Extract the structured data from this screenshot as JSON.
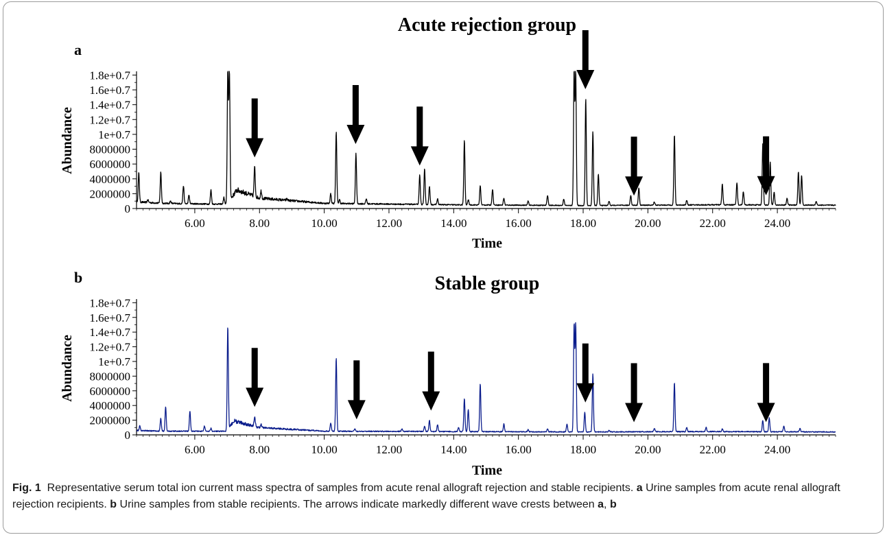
{
  "caption": {
    "fig_label": "Fig. 1",
    "text_1": "Representative serum total ion current mass spectra of samples from acute renal allograft rejection and stable recipients.",
    "label_a": "a",
    "text_2": "Urine samples from acute renal allograft rejection recipients.",
    "label_b": "b",
    "text_3": "Urine samples from stable recipients. The arrows indicate markedly different wave crests between",
    "label_a2": "a",
    "comma": ",",
    "label_b2": "b"
  },
  "colors": {
    "series_a": "#000000",
    "series_b": "#0b1d8c",
    "arrow": "#000000"
  },
  "chart_data": [
    {
      "type": "line",
      "panel_label": "a",
      "title": "Acute rejection group",
      "xlabel": "Time",
      "ylabel": "Abundance",
      "xlim": [
        4.2,
        25.8
      ],
      "ylim": [
        0,
        18500000
      ],
      "x_ticks": [
        6.0,
        8.0,
        10.0,
        12.0,
        14.0,
        16.0,
        18.0,
        20.0,
        22.0,
        24.0
      ],
      "x_tick_labels": [
        "6.00",
        "8.00",
        "10.00",
        "12.00",
        "14.00",
        "16.00",
        "18.00",
        "20.00",
        "22.00",
        "24.00"
      ],
      "y_ticks": [
        0,
        2000000,
        4000000,
        6000000,
        8000000,
        10000000,
        12000000,
        14000000,
        16000000,
        18000000
      ],
      "y_tick_labels": [
        "0",
        "2000000",
        "4000000",
        "6000000",
        "8000000",
        "1e+0.7",
        "1.2e+0.7",
        "1.4e+0.7",
        "1.6e+0.7",
        "1.8e+0.7"
      ],
      "arrows_at": [
        7.85,
        10.97,
        12.95,
        18.07,
        19.57,
        23.65
      ],
      "baseline": [
        [
          4.2,
          900000
        ],
        [
          5.0,
          700000
        ],
        [
          6.5,
          600000
        ],
        [
          7.0,
          600000
        ],
        [
          7.3,
          2500000
        ],
        [
          8.0,
          1400000
        ],
        [
          10.0,
          700000
        ],
        [
          14.0,
          500000
        ],
        [
          18.0,
          400000
        ],
        [
          22.0,
          500000
        ],
        [
          25.8,
          450000
        ]
      ],
      "peaks": [
        [
          4.27,
          4800000
        ],
        [
          4.55,
          1200000
        ],
        [
          4.95,
          4900000
        ],
        [
          5.25,
          1000000
        ],
        [
          5.65,
          3100000
        ],
        [
          5.82,
          1800000
        ],
        [
          6.5,
          2500000
        ],
        [
          6.9,
          1500000
        ],
        [
          7.02,
          18500000
        ],
        [
          7.07,
          18500000
        ],
        [
          7.85,
          5600000
        ],
        [
          8.05,
          2400000
        ],
        [
          8.85,
          1300000
        ],
        [
          9.2,
          1000000
        ],
        [
          9.7,
          900000
        ],
        [
          10.2,
          2000000
        ],
        [
          10.37,
          10400000
        ],
        [
          10.47,
          1200000
        ],
        [
          10.98,
          7400000
        ],
        [
          11.3,
          1300000
        ],
        [
          12.95,
          4500000
        ],
        [
          13.1,
          5300000
        ],
        [
          13.25,
          3000000
        ],
        [
          13.5,
          1300000
        ],
        [
          14.33,
          9200000
        ],
        [
          14.45,
          1200000
        ],
        [
          14.82,
          3100000
        ],
        [
          15.2,
          2600000
        ],
        [
          15.55,
          1400000
        ],
        [
          16.3,
          1000000
        ],
        [
          16.9,
          1800000
        ],
        [
          17.4,
          1300000
        ],
        [
          17.72,
          18500000
        ],
        [
          17.77,
          18500000
        ],
        [
          18.08,
          14800000
        ],
        [
          18.3,
          10400000
        ],
        [
          18.47,
          4600000
        ],
        [
          18.8,
          1000000
        ],
        [
          19.47,
          1800000
        ],
        [
          19.72,
          2800000
        ],
        [
          20.2,
          900000
        ],
        [
          20.82,
          10000000
        ],
        [
          21.2,
          1100000
        ],
        [
          22.3,
          3300000
        ],
        [
          22.75,
          3500000
        ],
        [
          22.95,
          2300000
        ],
        [
          23.55,
          8700000
        ],
        [
          23.78,
          6300000
        ],
        [
          23.9,
          2200000
        ],
        [
          24.3,
          1400000
        ],
        [
          24.65,
          5000000
        ],
        [
          24.75,
          4500000
        ],
        [
          25.2,
          1000000
        ]
      ]
    },
    {
      "type": "line",
      "panel_label": "b",
      "title": "Stable  group",
      "xlabel": "Time",
      "ylabel": "Abundance",
      "xlim": [
        4.2,
        25.8
      ],
      "ylim": [
        0,
        18500000
      ],
      "x_ticks": [
        6.0,
        8.0,
        10.0,
        12.0,
        14.0,
        16.0,
        18.0,
        20.0,
        22.0,
        24.0
      ],
      "x_tick_labels": [
        "6.00",
        "8.00",
        "10.00",
        "12.00",
        "14.00",
        "16.00",
        "18.00",
        "20.00",
        "22.00",
        "24.00"
      ],
      "y_ticks": [
        0,
        2000000,
        4000000,
        6000000,
        8000000,
        10000000,
        12000000,
        14000000,
        16000000,
        18000000
      ],
      "y_tick_labels": [
        "0",
        "2000000",
        "4000000",
        "6000000",
        "8000000",
        "1e+0.7",
        "1.2e+0.7",
        "1.4e+0.7",
        "1.6e+0.7",
        "1.8e+0.7"
      ],
      "arrows_at": [
        7.85,
        11.0,
        13.3,
        18.07,
        19.57,
        23.65
      ],
      "baseline": [
        [
          4.2,
          600000
        ],
        [
          5.0,
          500000
        ],
        [
          6.8,
          500000
        ],
        [
          7.0,
          500000
        ],
        [
          7.2,
          1900000
        ],
        [
          8.0,
          1000000
        ],
        [
          10.0,
          500000
        ],
        [
          14.0,
          450000
        ],
        [
          18.0,
          400000
        ],
        [
          22.0,
          450000
        ],
        [
          25.8,
          400000
        ]
      ],
      "peaks": [
        [
          4.3,
          1200000
        ],
        [
          4.95,
          2200000
        ],
        [
          5.1,
          3900000
        ],
        [
          5.85,
          3200000
        ],
        [
          6.3,
          1200000
        ],
        [
          6.5,
          900000
        ],
        [
          7.02,
          14800000
        ],
        [
          7.85,
          2500000
        ],
        [
          8.05,
          1400000
        ],
        [
          10.2,
          1600000
        ],
        [
          10.37,
          10500000
        ],
        [
          10.95,
          800000
        ],
        [
          12.4,
          800000
        ],
        [
          13.1,
          1200000
        ],
        [
          13.25,
          2000000
        ],
        [
          13.5,
          1400000
        ],
        [
          14.15,
          1000000
        ],
        [
          14.33,
          5000000
        ],
        [
          14.45,
          3500000
        ],
        [
          14.82,
          7000000
        ],
        [
          15.55,
          1500000
        ],
        [
          16.3,
          700000
        ],
        [
          16.9,
          800000
        ],
        [
          17.5,
          1500000
        ],
        [
          17.72,
          15000000
        ],
        [
          17.77,
          15000000
        ],
        [
          18.05,
          3100000
        ],
        [
          18.3,
          8300000
        ],
        [
          18.8,
          600000
        ],
        [
          20.2,
          900000
        ],
        [
          20.82,
          7100000
        ],
        [
          21.2,
          1000000
        ],
        [
          21.8,
          1000000
        ],
        [
          22.3,
          800000
        ],
        [
          23.55,
          2000000
        ],
        [
          23.75,
          2300000
        ],
        [
          24.2,
          1200000
        ],
        [
          24.7,
          900000
        ]
      ]
    }
  ]
}
